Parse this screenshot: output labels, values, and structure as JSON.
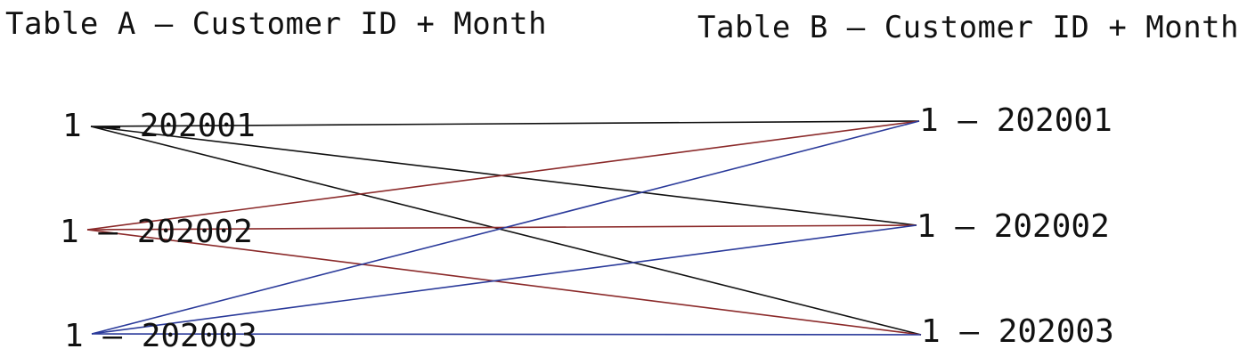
{
  "titles": {
    "table_a": "Table A – Customer ID + Month",
    "table_b": "Table B – Customer ID + Month"
  },
  "left_nodes": [
    "1 – 202001",
    "1 – 202002",
    "1 – 202003"
  ],
  "right_nodes": [
    "1 – 202001",
    "1 – 202002",
    "1 – 202003"
  ],
  "colors": {
    "from_202001": "#111111",
    "from_202002": "#8b2a2a",
    "from_202003": "#2a3a9a"
  },
  "connections": [
    {
      "from": 0,
      "to": 0,
      "color_key": "from_202001"
    },
    {
      "from": 0,
      "to": 1,
      "color_key": "from_202001"
    },
    {
      "from": 0,
      "to": 2,
      "color_key": "from_202001"
    },
    {
      "from": 1,
      "to": 0,
      "color_key": "from_202002"
    },
    {
      "from": 1,
      "to": 1,
      "color_key": "from_202002"
    },
    {
      "from": 1,
      "to": 2,
      "color_key": "from_202002"
    },
    {
      "from": 2,
      "to": 0,
      "color_key": "from_202003"
    },
    {
      "from": 2,
      "to": 1,
      "color_key": "from_202003"
    },
    {
      "from": 2,
      "to": 2,
      "color_key": "from_202003"
    }
  ]
}
